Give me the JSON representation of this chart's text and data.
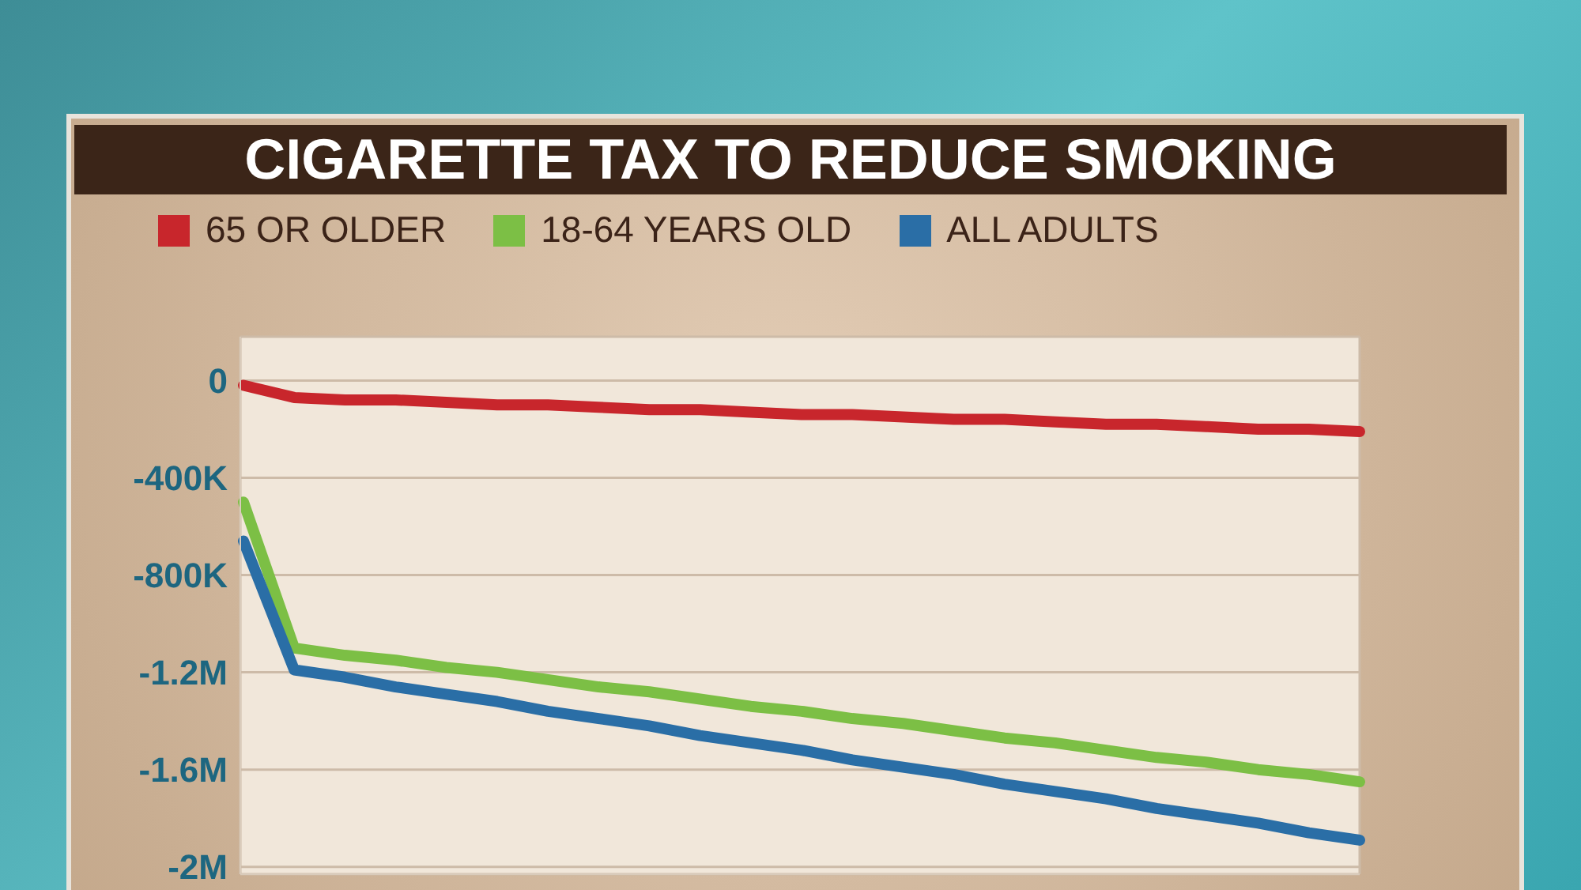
{
  "chart_data": {
    "type": "line",
    "title": "CIGARETTE TAX TO REDUCE SMOKING",
    "categories": [
      null,
      null,
      null,
      null,
      null,
      null,
      null,
      null,
      null,
      null,
      null,
      null,
      null,
      null,
      null,
      null,
      null,
      null,
      null,
      null,
      null,
      null,
      null
    ],
    "ylim": [
      -2030000,
      180000
    ],
    "yticks": [
      0,
      {
        "value": -400000,
        "label": "-400K"
      },
      {
        "value": -800000,
        "label": "-800K"
      },
      {
        "value": -1200000,
        "label": "-1.2M"
      },
      {
        "value": -1600000,
        "label": "-1.6M"
      },
      {
        "value": -2000000,
        "label": "-2M"
      }
    ],
    "grid": true,
    "tick_labels": "y",
    "legend": "top left",
    "marker": "none",
    "line_style": "solid",
    "series": [
      {
        "name": "65 OR OLDER",
        "color": "#c8262c",
        "values": [
          -20000,
          -70000,
          -80000,
          -80000,
          -90000,
          -100000,
          -100000,
          -110000,
          -120000,
          -120000,
          -130000,
          -140000,
          -140000,
          -150000,
          -160000,
          -160000,
          -170000,
          -180000,
          -180000,
          -190000,
          -200000,
          -200000,
          -210000
        ]
      },
      {
        "name": "18-64 YEARS OLD",
        "color": "#7cbf45",
        "values": [
          -500000,
          -1100000,
          -1130000,
          -1150000,
          -1180000,
          -1200000,
          -1230000,
          -1260000,
          -1280000,
          -1310000,
          -1340000,
          -1360000,
          -1390000,
          -1410000,
          -1440000,
          -1470000,
          -1490000,
          -1520000,
          -1550000,
          -1570000,
          -1600000,
          -1620000,
          -1650000
        ]
      },
      {
        "name": "ALL ADULTS",
        "color": "#2a6ea6",
        "values": [
          -660000,
          -1190000,
          -1220000,
          -1260000,
          -1290000,
          -1320000,
          -1360000,
          -1390000,
          -1420000,
          -1460000,
          -1490000,
          -1520000,
          -1560000,
          -1590000,
          -1620000,
          -1660000,
          -1690000,
          -1720000,
          -1760000,
          -1790000,
          -1820000,
          -1860000,
          -1890000
        ]
      }
    ]
  }
}
